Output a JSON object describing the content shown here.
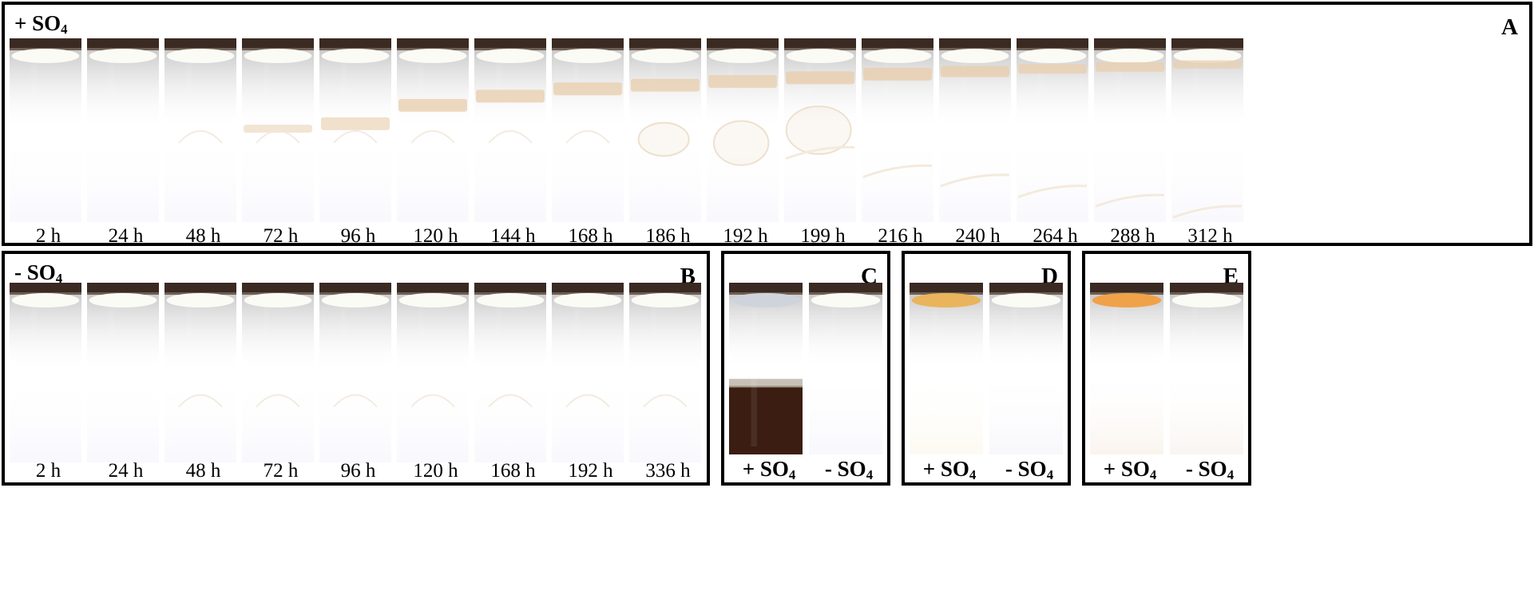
{
  "panels": {
    "A": {
      "letter": "A",
      "condition_prefix": "+ SO",
      "condition_sub": "4",
      "time_labels": [
        "2 h",
        "24 h",
        "48 h",
        "72 h",
        "96 h",
        "120 h",
        "144 h",
        "168 h",
        "186 h",
        "192 h",
        "199 h",
        "216 h",
        "240 h",
        "264 h",
        "288 h",
        "312 h"
      ]
    },
    "B": {
      "letter": "B",
      "condition_prefix": "- SO",
      "condition_sub": "4",
      "time_labels": [
        "2 h",
        "24 h",
        "48 h",
        "72 h",
        "96 h",
        "120 h",
        "168 h",
        "192 h",
        "336 h"
      ]
    },
    "C": {
      "letter": "C",
      "tube_labels": [
        {
          "prefix": "+ SO",
          "sub": "4"
        },
        {
          "prefix": "- SO",
          "sub": "4"
        }
      ]
    },
    "D": {
      "letter": "D",
      "tube_labels": [
        {
          "prefix": "+ SO",
          "sub": "4"
        },
        {
          "prefix": "- SO",
          "sub": "4"
        }
      ]
    },
    "E": {
      "letter": "E",
      "tube_labels": [
        {
          "prefix": "+ SO",
          "sub": "4"
        },
        {
          "prefix": "- SO",
          "sub": "4"
        }
      ]
    }
  },
  "colors": {
    "border": "#000000",
    "cap": "#3a2a22",
    "gel_grey": "#8f8a8f",
    "band_warm": "#e8cfb0",
    "precipitate_brown": "#3b1d12",
    "tube_D_plus": "#8a6a45",
    "tube_D_minus": "#7d706c",
    "tube_E_plus": "#c79f78",
    "tube_E_minus": "#b79e86"
  }
}
